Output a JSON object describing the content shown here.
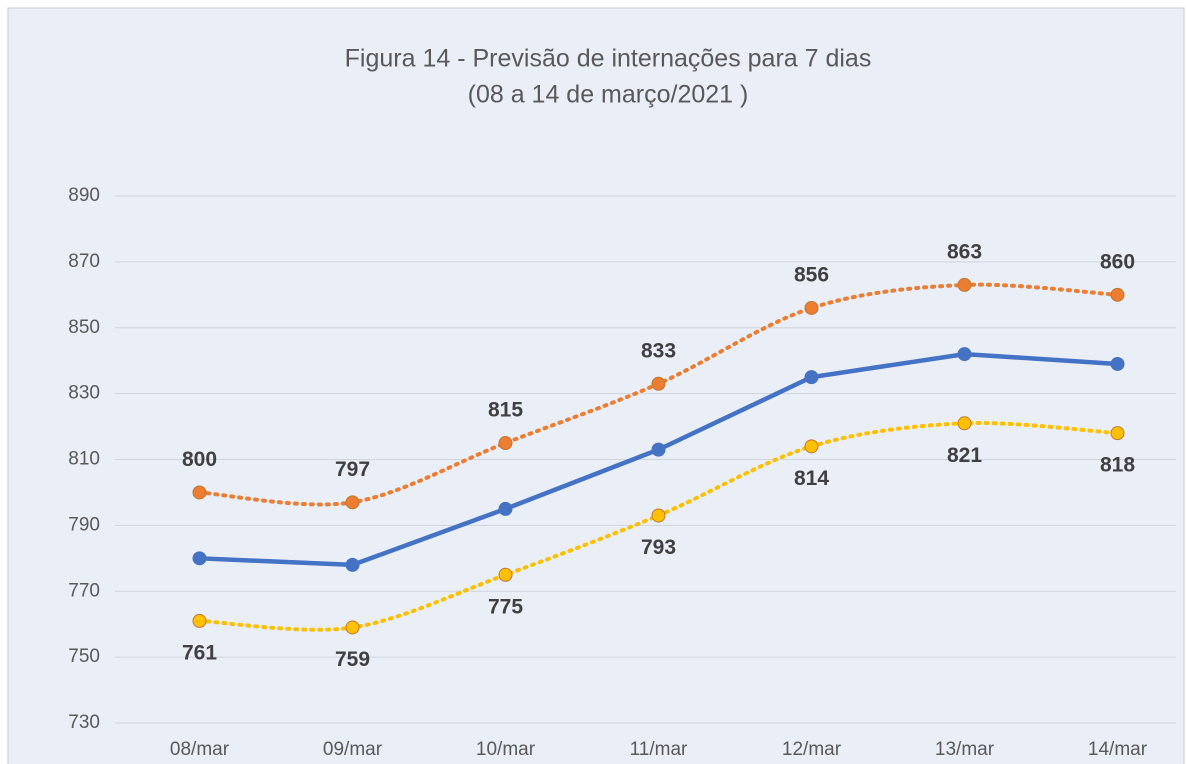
{
  "chart_data": {
    "type": "line",
    "title": "Figura 14 - Previsão de internações para 7 dias",
    "subtitle": "(08 a 14 de março/2021 )",
    "categories": [
      "08/mar",
      "09/mar",
      "10/mar",
      "11/mar",
      "12/mar",
      "13/mar",
      "14/mar"
    ],
    "series": [
      {
        "color": "#4472c4",
        "dashed": false,
        "smooth": false,
        "label_position": "none",
        "values": [
          780,
          778,
          795,
          813,
          835,
          842,
          839
        ]
      },
      {
        "color": "#ed7d31",
        "dashed": true,
        "smooth": true,
        "label_position": "above",
        "values": [
          800,
          797,
          815,
          833,
          856,
          863,
          860
        ]
      },
      {
        "color": "#ffc000",
        "dashed": true,
        "smooth": true,
        "label_position": "below",
        "values": [
          761,
          759,
          775,
          793,
          814,
          821,
          818
        ]
      }
    ],
    "ylim": [
      730,
      890
    ],
    "yticks": [
      730,
      750,
      770,
      790,
      810,
      830,
      850,
      870,
      890
    ],
    "grid": true
  }
}
